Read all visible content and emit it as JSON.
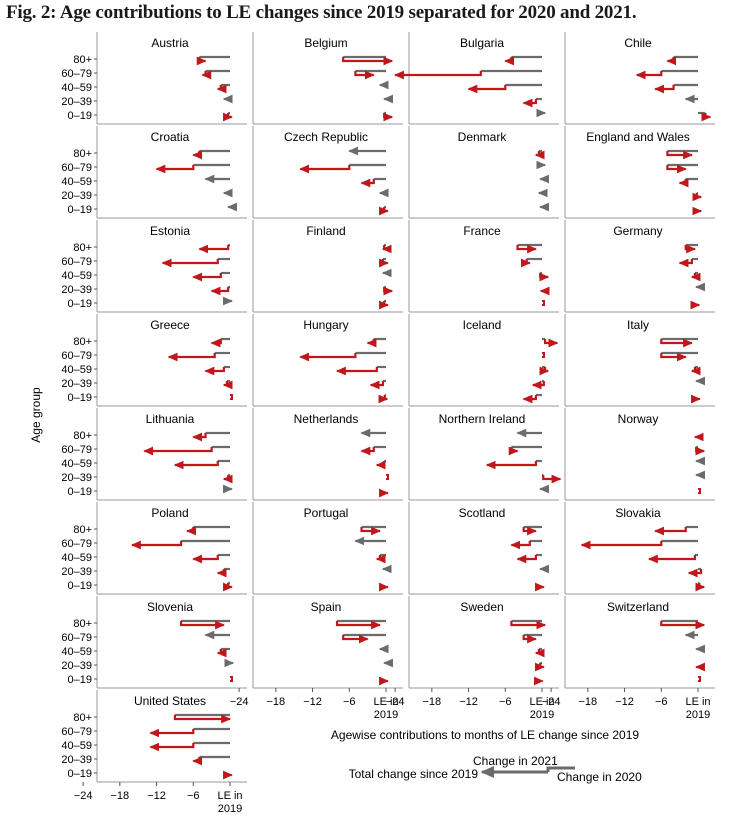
{
  "figure": {
    "title": "Fig. 2: Age contributions to LE changes since 2019 separated for 2020 and 2021.",
    "y_axis_label": "Age group",
    "x_axis_label": "Agewise contributions to months of LE change since 2019",
    "x_tick_labels": [
      "−24",
      "−18",
      "−12",
      "−6",
      "LE in\n2019"
    ],
    "legend": {
      "change_2021": "Change in 2021",
      "total_change": "Total change since 2019",
      "change_2020": "Change in 2020"
    },
    "colors": {
      "change_2021": "#c0171c",
      "change_2020": "#6b6b6b"
    }
  },
  "chart_data": {
    "type": "bar",
    "description_units": "months of life expectancy",
    "age_groups": [
      "80+",
      "60–79",
      "40–59",
      "20–39",
      "0–19"
    ],
    "xlim": [
      -26,
      2
    ],
    "x_ticks": [
      -24,
      -18,
      -12,
      -6,
      0
    ],
    "encoding": "for each age group: grey segment from 0 to c2020, then red segment from c2020 to total (c2020 + c2021), arrowhead at total",
    "panels": [
      {
        "name": "Austria",
        "c2020": [
          -5,
          -4,
          -1.5,
          -1,
          -0.3
        ],
        "total": [
          -4,
          -4.5,
          -2,
          -1.2,
          0.3
        ]
      },
      {
        "name": "Belgium",
        "c2020": [
          -7,
          -5,
          -1,
          -0.3,
          -0.3
        ],
        "total": [
          1,
          -2,
          -1,
          -0.3,
          1
        ]
      },
      {
        "name": "Bulgaria",
        "c2020": [
          -5,
          -10,
          -6,
          -1,
          0.5
        ],
        "total": [
          -6,
          -24,
          -12,
          -3,
          0.5
        ]
      },
      {
        "name": "Chile",
        "c2020": [
          -4,
          -6,
          -4,
          -2,
          1.2
        ],
        "total": [
          -5,
          -10,
          -7,
          -2,
          2
        ]
      },
      {
        "name": "Croatia",
        "c2020": [
          -5,
          -6,
          -4,
          -1,
          -0.3
        ],
        "total": [
          -6,
          -12,
          -4,
          -1,
          -0.3
        ]
      },
      {
        "name": "Czech Republic",
        "c2020": [
          -6,
          -6,
          -2,
          -1,
          -0.3
        ],
        "total": [
          -6,
          -14,
          -4,
          -1,
          0.3
        ]
      },
      {
        "name": "Denmark",
        "c2020": [
          -0.5,
          0.5,
          -0.3,
          -0.5,
          -0.3
        ],
        "total": [
          -1,
          0.5,
          -0.3,
          -0.5,
          -0.3
        ]
      },
      {
        "name": "England and Wales",
        "c2020": [
          -5,
          -5,
          -2,
          -0.2,
          -0.1
        ],
        "total": [
          -1,
          -2,
          -3,
          0.5,
          0.5
        ]
      },
      {
        "name": "Estonia",
        "c2020": [
          -0.3,
          -2,
          -1.5,
          -0.3,
          0.3
        ],
        "total": [
          -5,
          -11,
          -6,
          -3,
          0.3
        ]
      },
      {
        "name": "Finland",
        "c2020": [
          -0.3,
          -0.5,
          -0.5,
          -0.3,
          -0.3
        ],
        "total": [
          -0.5,
          0.3,
          -0.5,
          1,
          0.3
        ]
      },
      {
        "name": "France",
        "c2020": [
          -4,
          -2.5,
          -0.3,
          0.1,
          0.1
        ],
        "total": [
          -1,
          -2,
          1,
          -0.2,
          0.1
        ]
      },
      {
        "name": "Germany",
        "c2020": [
          -2,
          -1,
          -0.5,
          -0.3,
          -0.1
        ],
        "total": [
          -0.5,
          -3,
          -1,
          -0.3,
          0.2
        ]
      },
      {
        "name": "Greece",
        "c2020": [
          -1.5,
          -2.5,
          -1,
          -0.5,
          0
        ],
        "total": [
          -3,
          -10,
          -4,
          -1,
          0
        ]
      },
      {
        "name": "Hungary",
        "c2020": [
          -2,
          -5,
          -1.5,
          -0.5,
          -0.2
        ],
        "total": [
          -3,
          -14,
          -8,
          -2.5,
          0.2
        ]
      },
      {
        "name": "Iceland",
        "c2020": [
          0.5,
          0.1,
          0.5,
          0.3,
          -1
        ],
        "total": [
          2.5,
          0.1,
          1,
          -1.5,
          -3
        ]
      },
      {
        "name": "Italy",
        "c2020": [
          -6,
          -6,
          -0.5,
          -0.3,
          -0.1
        ],
        "total": [
          -1,
          -2,
          -1,
          -0.3,
          0.3
        ]
      },
      {
        "name": "Lithuania",
        "c2020": [
          -4,
          -3,
          -2,
          -0.3,
          0.3
        ],
        "total": [
          -6,
          -14,
          -9,
          -1,
          0.3
        ]
      },
      {
        "name": "Netherlands",
        "c2020": [
          -4,
          -2,
          -0.3,
          -0.1,
          -0.1
        ],
        "total": [
          -4,
          -4,
          -1.5,
          -0.3,
          0.3
        ]
      },
      {
        "name": "Northern Ireland",
        "c2020": [
          -4,
          -5,
          -1,
          0.2,
          -0.3
        ],
        "total": [
          -4,
          -4,
          -9,
          3,
          -0.3
        ]
      },
      {
        "name": "Norway",
        "c2020": [
          0,
          -0.3,
          -0.3,
          -0.3,
          0.1
        ],
        "total": [
          -0.5,
          1,
          -0.3,
          -0.3,
          0.1
        ]
      },
      {
        "name": "Poland",
        "c2020": [
          -6,
          -8,
          -2,
          -1,
          -0.3
        ],
        "total": [
          -7,
          -16,
          -6,
          -2,
          0.3
        ]
      },
      {
        "name": "Portugal",
        "c2020": [
          -4,
          -5,
          -1,
          -0.5,
          -0.1
        ],
        "total": [
          -1,
          -5,
          -1.5,
          -0.5,
          0.3
        ]
      },
      {
        "name": "Scotland",
        "c2020": [
          -3,
          -2,
          -1,
          -0.3,
          -0.1
        ],
        "total": [
          -1,
          -5,
          -4,
          -0.3,
          0.3
        ]
      },
      {
        "name": "Slovakia",
        "c2020": [
          -2,
          -6,
          -0.5,
          0.5,
          0.2
        ],
        "total": [
          -7,
          -19,
          -8,
          -1.5,
          1
        ]
      },
      {
        "name": "Slovenia",
        "c2020": [
          -8,
          -4,
          -1.5,
          0.5,
          0
        ],
        "total": [
          -1,
          -4,
          -2,
          0.5,
          0
        ]
      },
      {
        "name": "Spain",
        "c2020": [
          -8,
          -7,
          -1,
          -0.3,
          -0.1
        ],
        "total": [
          -1,
          -3,
          -1,
          -0.3,
          0.3
        ]
      },
      {
        "name": "Sweden",
        "c2020": [
          -5,
          -3,
          -0.5,
          -0.3,
          -0.1
        ],
        "total": [
          0.5,
          -1,
          -1,
          0.3,
          0.1
        ]
      },
      {
        "name": "Switzerland",
        "c2020": [
          -6,
          -2,
          -0.3,
          0.1,
          0.1
        ],
        "total": [
          1,
          -2,
          -0.3,
          -0.3,
          0.1
        ]
      },
      {
        "name": "United States",
        "c2020": [
          -9,
          -6,
          -6,
          -5,
          -0.1
        ],
        "total": [
          0,
          -13,
          -13,
          -6,
          0.3
        ]
      }
    ]
  }
}
